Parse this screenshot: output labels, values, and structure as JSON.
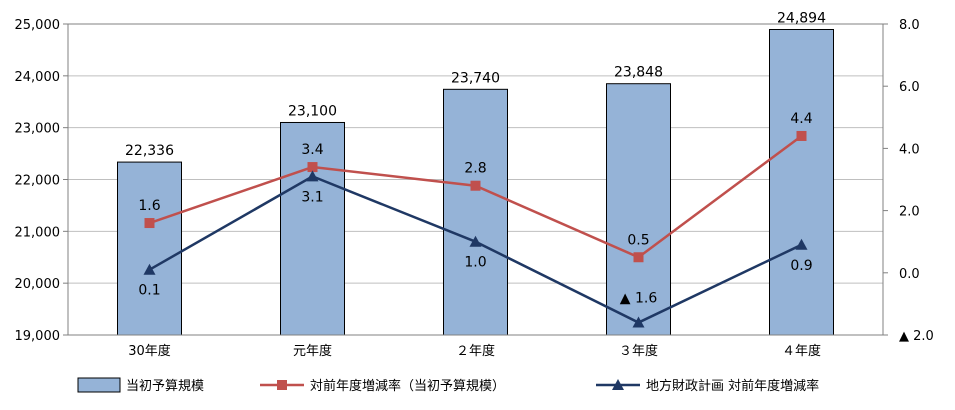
{
  "chart_data": {
    "type": "bar",
    "categories": [
      "30年度",
      "元年度",
      "２年度",
      "３年度",
      "４年度"
    ],
    "y_left": {
      "ylim": [
        19000,
        25000
      ],
      "ticks": [
        19000,
        20000,
        21000,
        22000,
        23000,
        24000,
        25000
      ],
      "tick_labels": [
        "19,000",
        "20,000",
        "21,000",
        "22,000",
        "23,000",
        "24,000",
        "25,000"
      ]
    },
    "y_right": {
      "ylim": [
        -2.0,
        8.0
      ],
      "ticks": [
        -2.0,
        0.0,
        2.0,
        4.0,
        6.0,
        8.0
      ],
      "tick_labels": [
        "▲ 2.0",
        "0.0",
        "2.0",
        "4.0",
        "6.0",
        "8.0"
      ]
    },
    "grid": true,
    "legend_position": "bottom",
    "series": [
      {
        "name": "当初予算規模",
        "kind": "bar",
        "axis": "left",
        "color": "#95b3d7",
        "values": [
          22336,
          23100,
          23740,
          23848,
          24894
        ],
        "labels": [
          "22,336",
          "23,100",
          "23,740",
          "23,848",
          "24,894"
        ]
      },
      {
        "name": "対前年度増減率（当初予算規模）",
        "kind": "line",
        "axis": "right",
        "color": "#c0504d",
        "marker": "square",
        "values": [
          1.6,
          3.4,
          2.8,
          0.5,
          4.4
        ],
        "labels": [
          "1.6",
          "3.4",
          "2.8",
          "0.5",
          "4.4"
        ]
      },
      {
        "name": "地方財政計画 対前年度増減率",
        "kind": "line",
        "axis": "right",
        "color": "#1f3864",
        "marker": "triangle",
        "values": [
          0.1,
          3.1,
          1.0,
          -1.6,
          0.9
        ],
        "labels": [
          "0.1",
          "3.1",
          "1.0",
          "▲ 1.6",
          "0.9"
        ]
      }
    ]
  }
}
